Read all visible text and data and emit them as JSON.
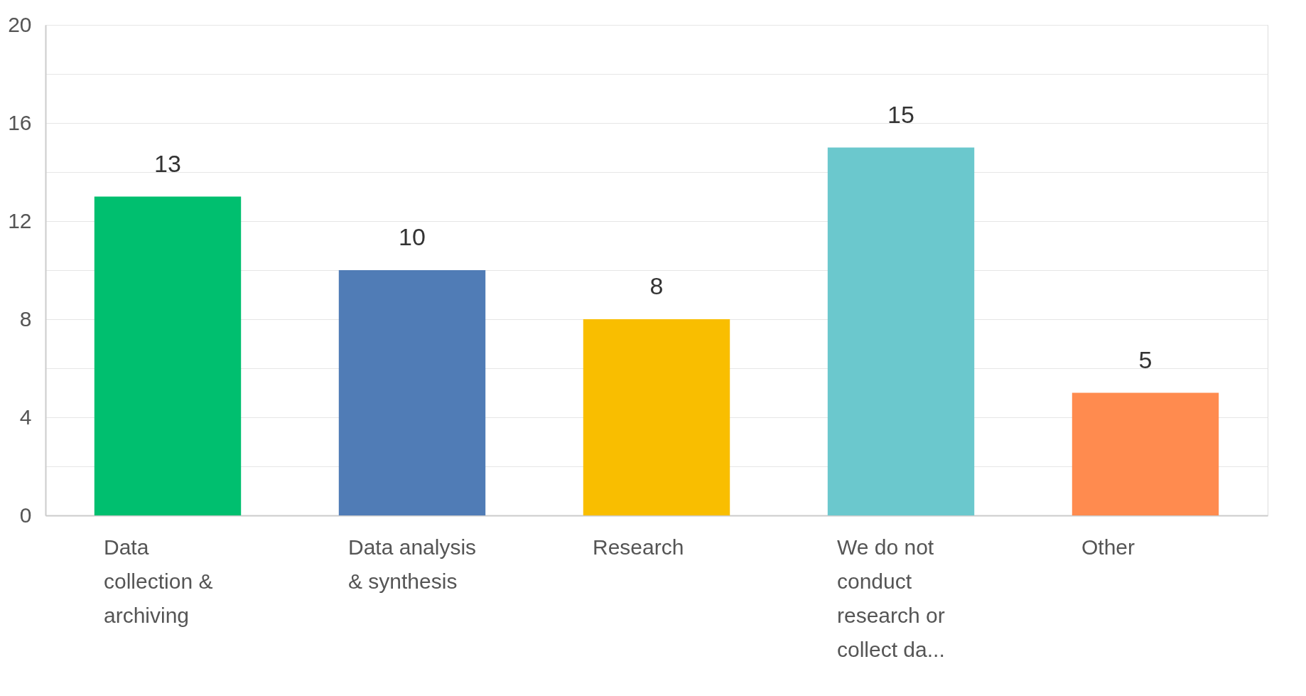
{
  "chart_data": {
    "type": "bar",
    "categories": [
      "Data collection & archiving",
      "Data analysis & synthesis",
      "Research",
      "We do not conduct research or collect da...",
      "Other"
    ],
    "values": [
      13,
      10,
      8,
      15,
      5
    ],
    "colors": [
      "#00bf6f",
      "#507cb6",
      "#f9be00",
      "#6bc8cd",
      "#ff8b4f"
    ],
    "ylim": [
      0,
      20
    ],
    "yticks": [
      0,
      {
        "value": 2,
        "label": null
      },
      4,
      {
        "value": 6,
        "label": null
      },
      8,
      {
        "value": 10,
        "label": null
      },
      12,
      {
        "value": 14,
        "label": null
      },
      16,
      {
        "value": 18,
        "label": null
      },
      20
    ],
    "grid": "y",
    "data_labels": true,
    "legend": false
  }
}
